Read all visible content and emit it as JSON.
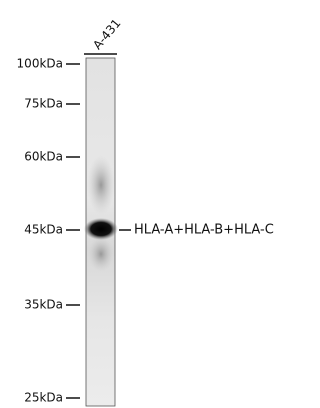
{
  "lane_labels": [
    "A-431"
  ],
  "markers": [
    "100kDa",
    "75kDa",
    "60kDa",
    "45kDa",
    "35kDa",
    "25kDa"
  ],
  "band_label": "HLA-A+HLA-B+HLA-C"
}
